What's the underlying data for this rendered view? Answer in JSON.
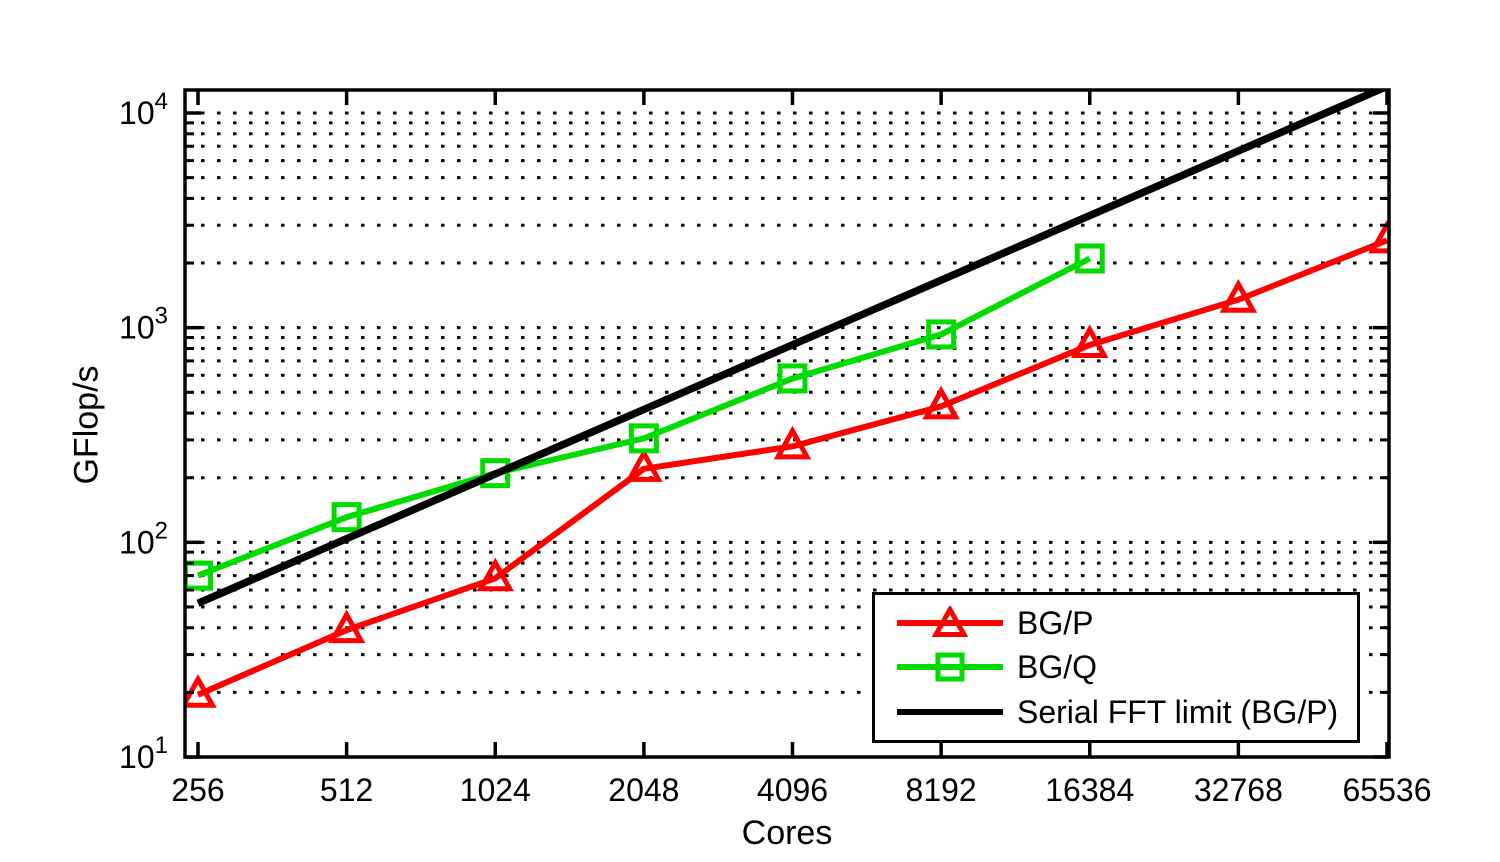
{
  "figure": {
    "background": "#ffffff",
    "axis_color": "#000000"
  },
  "chart_data": {
    "type": "line",
    "title": "",
    "xlabel": "Cores",
    "ylabel": "GFlop/s",
    "x_scale": "log2",
    "y_scale": "log10",
    "xlim": [
      256,
      65536
    ],
    "ylim": [
      10,
      12800
    ],
    "grid": {
      "style": "dotted",
      "color": "#000000",
      "orientation": "horizontal",
      "minor": true,
      "minor_multiples": [
        2,
        3,
        4,
        5,
        6,
        7,
        8,
        9
      ]
    },
    "x_ticks": {
      "values": [
        256,
        512,
        1024,
        2048,
        4096,
        8192,
        16384,
        32768,
        65536
      ],
      "labels": [
        "256",
        "512",
        "1024",
        "2048",
        "4096",
        "8192",
        "16384",
        "32768",
        "65536"
      ]
    },
    "y_ticks": {
      "values": [
        10,
        100,
        1000,
        10000
      ],
      "labels": [
        {
          "base": "10",
          "exp": "1"
        },
        {
          "base": "10",
          "exp": "2"
        },
        {
          "base": "10",
          "exp": "3"
        },
        {
          "base": "10",
          "exp": "4"
        }
      ]
    },
    "series": [
      {
        "name": "BG/P",
        "color": "#ff0000",
        "marker": "triangle",
        "line_width": 6,
        "x": [
          256,
          512,
          1024,
          2048,
          4096,
          8192,
          16384,
          32768,
          65536
        ],
        "values": [
          19.5,
          39,
          68,
          220,
          280,
          430,
          830,
          1350,
          2550
        ]
      },
      {
        "name": "BG/Q",
        "color": "#00dc00",
        "marker": "square",
        "line_width": 6,
        "x": [
          256,
          512,
          1024,
          2048,
          4096,
          8192,
          16384
        ],
        "values": [
          70,
          131,
          210,
          305,
          580,
          930,
          2100
        ]
      },
      {
        "name": "Serial FFT limit (BG/P)",
        "color": "#000000",
        "marker": "none",
        "line_width": 7.5,
        "x": [
          256,
          65536
        ],
        "values": [
          52,
          13312
        ]
      }
    ],
    "legend": {
      "position": "lower right",
      "background": "#ffffff",
      "border_color": "#000000"
    }
  }
}
